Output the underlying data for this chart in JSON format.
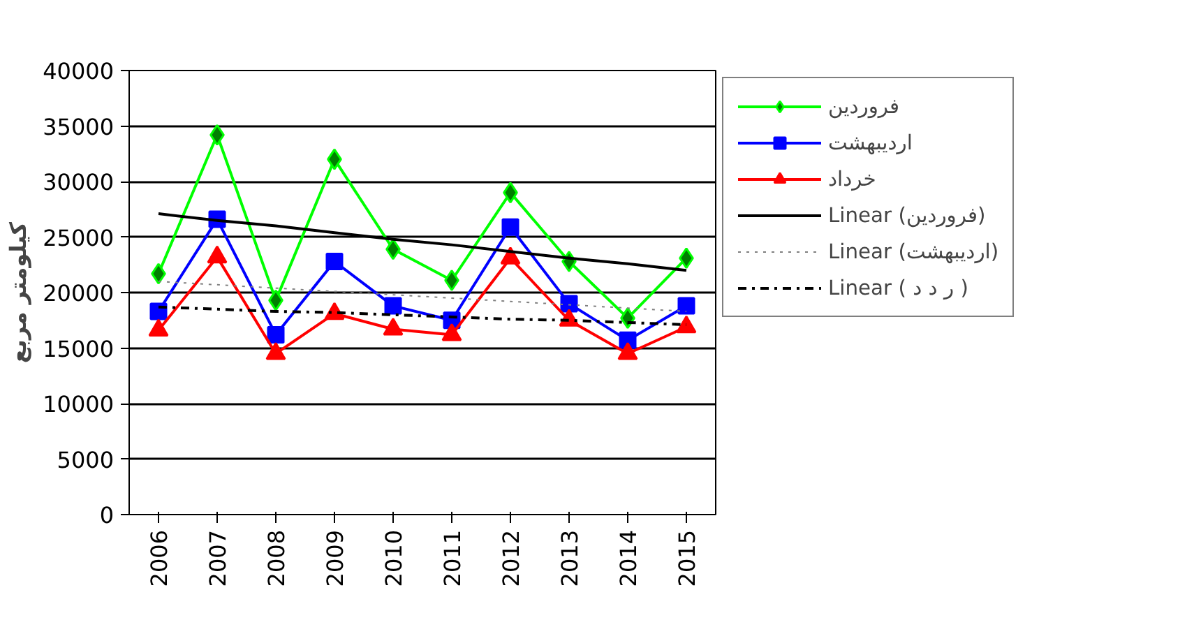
{
  "chart_data": {
    "type": "line",
    "ylabel": "کیلومتر مربع",
    "categories": [
      "2006",
      "2007",
      "2008",
      "2009",
      "2010",
      "2011",
      "2012",
      "2013",
      "2014",
      "2015"
    ],
    "ylim": [
      0,
      40000
    ],
    "yticks": [
      0,
      5000,
      10000,
      15000,
      20000,
      25000,
      30000,
      35000,
      40000
    ],
    "grid": "y",
    "legend": "right",
    "series": [
      {
        "name": "فروردین",
        "color": "#00ff00",
        "marker": "diamond",
        "values": [
          21700,
          34200,
          19300,
          32000,
          23900,
          21100,
          29000,
          22800,
          17700,
          23100
        ]
      },
      {
        "name": "اردیبهشت",
        "color": "#0000ff",
        "marker": "square",
        "values": [
          18300,
          26600,
          16200,
          22800,
          18800,
          17500,
          25900,
          19000,
          15700,
          18800
        ]
      },
      {
        "name": "خرداد",
        "color": "#ff0000",
        "marker": "triangle",
        "values": [
          16600,
          23200,
          14500,
          18100,
          16700,
          16200,
          23100,
          17500,
          14500,
          16900
        ]
      },
      {
        "name": "Linear (فروردین)",
        "color": "#000000",
        "line_style": "solid",
        "values": [
          27100,
          26500,
          26000,
          25400,
          24800,
          24300,
          23700,
          23100,
          22600,
          22000
        ]
      },
      {
        "name": "Linear (اردیبهشت)",
        "color": "#808080",
        "line_style": "dotted",
        "values": [
          21000,
          20700,
          20400,
          20100,
          19800,
          19500,
          19200,
          18900,
          18600,
          18300
        ]
      },
      {
        "name": "Linear ( ر د د )",
        "color": "#000000",
        "line_style": "dashdot",
        "values": [
          18700,
          18500,
          18300,
          18200,
          18000,
          17800,
          17600,
          17500,
          17300,
          17100
        ]
      }
    ]
  }
}
